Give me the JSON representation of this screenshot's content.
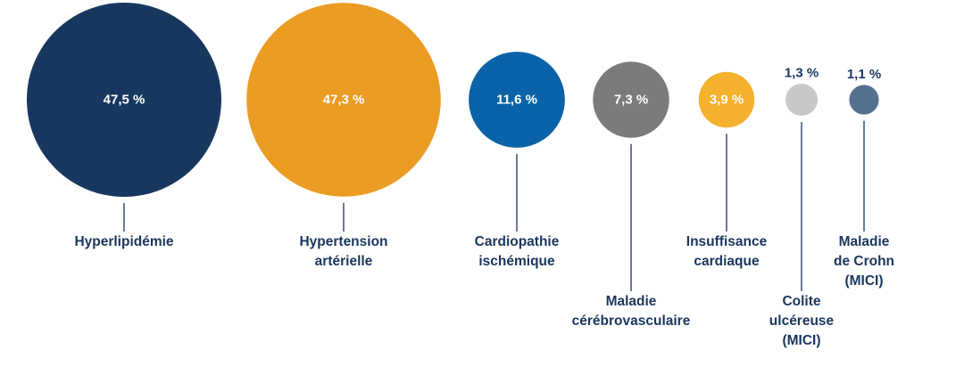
{
  "chart_data": {
    "type": "bubble",
    "title": "",
    "unit": "%",
    "categories": [
      [
        "Hyperlipidémie"
      ],
      [
        "Hypertension",
        "artérielle"
      ],
      [
        "Cardiopathie",
        "ischémique"
      ],
      [
        "Maladie",
        "cérébrovasculaire"
      ],
      [
        "Insuffisance",
        "cardiaque"
      ],
      [
        "Colite",
        "ulcéreuse",
        "(MICI)"
      ],
      [
        "Maladie",
        "de Crohn",
        "(MICI)"
      ]
    ],
    "values": [
      47.5,
      47.3,
      11.6,
      7.3,
      3.9,
      1.3,
      1.1
    ],
    "value_labels": [
      "47,5 %",
      "47,3 %",
      "11,6 %",
      "7,3 %",
      "3,9 %",
      "1,3 %",
      "1,1 %"
    ],
    "colors": [
      "#17375e",
      "#eb9c23",
      "#0a63a8",
      "#7b7b7b",
      "#f4b12e",
      "#c8c8c8",
      "#56708f"
    ],
    "label_text_color": "#1a365d",
    "value_text_color_inside": "#ffffff"
  }
}
